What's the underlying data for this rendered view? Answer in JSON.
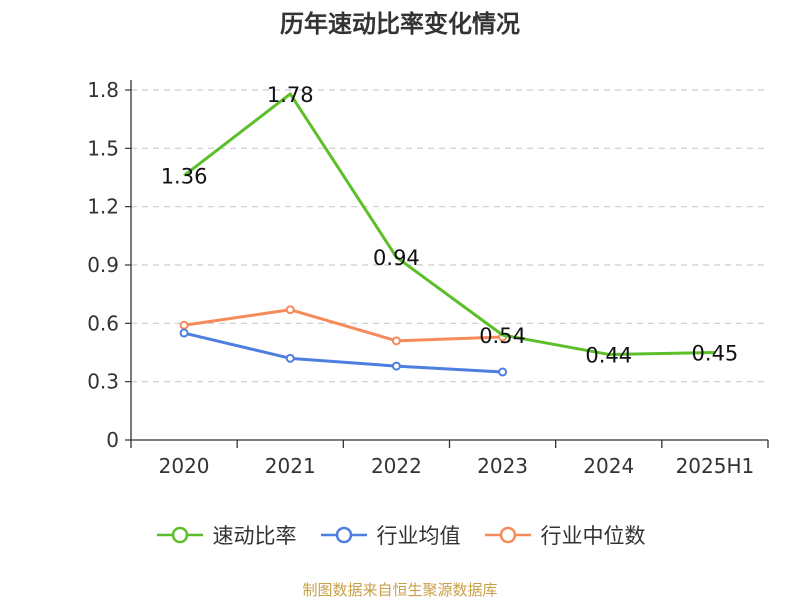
{
  "chart_data": {
    "type": "line",
    "title": "历年速动比率变化情况",
    "categories": [
      "2020",
      "2021",
      "2022",
      "2023",
      "2024",
      "2025H1"
    ],
    "ylim": [
      0,
      1.8
    ],
    "yticks": [
      "0",
      "0.3",
      "0.6",
      "0.9",
      "1.2",
      "1.5",
      "1.8"
    ],
    "grid": true,
    "legend_position": "bottom",
    "series": [
      {
        "name": "速动比率",
        "color": "#5cbf2a",
        "values": [
          1.36,
          1.78,
          0.94,
          0.54,
          0.44,
          0.45
        ],
        "labels": [
          "1.36",
          "1.78",
          "0.94",
          "0.54",
          "0.44",
          "0.45"
        ],
        "show_labels": true
      },
      {
        "name": "行业均值",
        "color": "#4e7fe0",
        "values": [
          0.55,
          0.42,
          0.38,
          0.35,
          null,
          null
        ],
        "show_labels": false
      },
      {
        "name": "行业中位数",
        "color": "#f58a5a",
        "values": [
          0.59,
          0.67,
          0.51,
          0.53,
          null,
          null
        ],
        "show_labels": false
      }
    ]
  },
  "source": "制图数据来自恒生聚源数据库"
}
